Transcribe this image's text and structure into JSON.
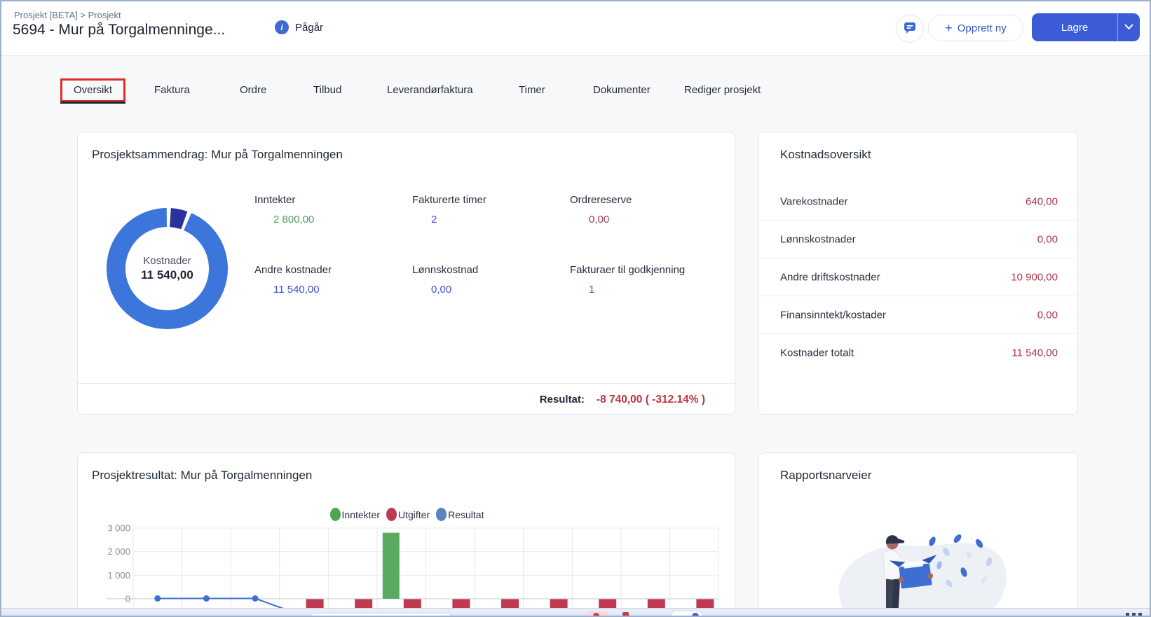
{
  "header": {
    "breadcrumb": "Prosjekt [BETA] > Prosjekt",
    "title": "5694 - Mur på Torgalmenninge...",
    "status": {
      "label": "Pågår",
      "icon": "info-icon",
      "color": "#3d6ad1"
    },
    "actions": {
      "chat_icon": "chat-bubble-icon",
      "plus": "+",
      "create_label": "Opprett ny",
      "save_label": "Lagre"
    }
  },
  "tabs": [
    {
      "label": "Oversikt",
      "active": true,
      "annotated": true
    },
    {
      "label": "Faktura"
    },
    {
      "label": "Ordre"
    },
    {
      "label": "Tilbud"
    },
    {
      "label": "Leverandørfaktura"
    },
    {
      "label": "Timer"
    },
    {
      "label": "Dokumenter"
    },
    {
      "label": "Rediger prosjekt"
    }
  ],
  "summary_card": {
    "title": "Prosjektsammendrag: Mur på Torgalmenningen",
    "donut": {
      "center_label": "Kostnader",
      "center_value": "11 540,00"
    },
    "stats": [
      {
        "label": "Inntekter",
        "value": "2 800,00",
        "color": "green"
      },
      {
        "label": "Fakturerte timer",
        "value": "2",
        "color": "blue"
      },
      {
        "label": "Ordrereserve",
        "value": "0,00",
        "color": "red"
      },
      {
        "label": "Andre kostnader",
        "value": "11 540,00",
        "color": "blue"
      },
      {
        "label": "Lønnskostnad",
        "value": "0,00",
        "color": "blue"
      },
      {
        "label": "Fakturaer til godkjenning",
        "value": "1",
        "color": "blue"
      }
    ],
    "result": {
      "label": "Resultat:",
      "value": "-8 740,00 ( -312.14% )"
    }
  },
  "cost_card": {
    "title": "Kostnadsoversikt",
    "rows": [
      {
        "label": "Varekostnader",
        "value": "640,00"
      },
      {
        "label": "Lønnskostnader",
        "value": "0,00"
      },
      {
        "label": "Andre driftskostnader",
        "value": "10 900,00"
      },
      {
        "label": "Finansinntekt/kostader",
        "value": "0,00"
      },
      {
        "label": "Kostnader totalt",
        "value": "11 540,00"
      }
    ]
  },
  "result_card": {
    "title": "Prosjektresultat: Mur på Torgalmenningen",
    "legend": [
      {
        "label": "Inntekter",
        "color": "#4ca654"
      },
      {
        "label": "Utgifter",
        "color": "#c03a52"
      },
      {
        "label": "Resultat",
        "color": "#5b82c2"
      }
    ]
  },
  "report_card": {
    "title": "Rapportsnarveier"
  },
  "chart_data": [
    {
      "type": "pie",
      "title": "Kostnader",
      "center_label": "Kostnader",
      "center_value": "11 540,00",
      "slices": [
        {
          "label": "Varekostnader",
          "value": 640,
          "color": "#2a339c"
        },
        {
          "label": "Andre kostnader",
          "value": 10900,
          "color": "#3c76db"
        }
      ]
    },
    {
      "type": "bar",
      "title": "Prosjektresultat: Mur på Torgalmenningen",
      "num_columns": 12,
      "series": [
        {
          "name": "Inntekter",
          "kind": "bar",
          "color": "#5aaa61",
          "values": [
            0,
            0,
            0,
            0,
            0,
            2800,
            0,
            0,
            0,
            0,
            0,
            0
          ]
        },
        {
          "name": "Utgifter",
          "kind": "bar",
          "color": "#bf3a50",
          "values": [
            0,
            0,
            0,
            -500,
            -500,
            -500,
            -500,
            -500,
            -500,
            -500,
            -500,
            -500
          ],
          "note": "negative bars extend below the visible viewport; heights estimated"
        },
        {
          "name": "Resultat",
          "kind": "line",
          "color": "#3e6fd1",
          "values": [
            0,
            0,
            0
          ],
          "continues_below_view": true
        }
      ],
      "ylim": [
        0,
        3000
      ],
      "yticks": [
        0,
        1000,
        2000,
        3000
      ],
      "ytick_labels": [
        "0",
        "1 000",
        "2 000",
        "3 000"
      ],
      "grid": true,
      "legend_position": "top"
    }
  ]
}
